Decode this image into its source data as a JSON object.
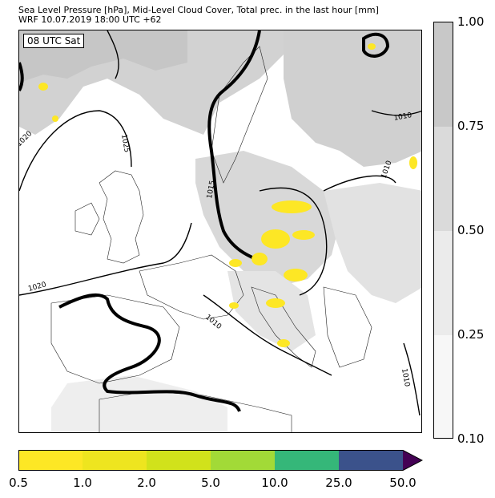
{
  "header": {
    "line1": "Sea Level Pressure [hPa], Mid-Level Cloud Cover, Total prec. in the last hour [mm]",
    "line2": "WRF 10.07.2019 18:00 UTC +62"
  },
  "map": {
    "time_label": "08 UTC Sat",
    "isobar_labels": [
      "1020",
      "1025",
      "1015",
      "1010",
      "1020",
      "1010",
      "1010",
      "1010"
    ]
  },
  "cloud_colorbar": {
    "ticks": [
      "1.00",
      "0.75",
      "0.50",
      "0.25",
      "0.10"
    ],
    "colors": [
      "#c8c8c8",
      "#dadada",
      "#ebebeb",
      "#f7f7f7"
    ]
  },
  "precip_colorbar": {
    "ticks": [
      "0.5",
      "1.0",
      "2.0",
      "5.0",
      "10.0",
      "25.0",
      "50.0"
    ],
    "colors": [
      "#fde725",
      "#eee51f",
      "#d1e21b",
      "#a2da37",
      "#35b779",
      "#3b528b",
      "#440154"
    ]
  },
  "legend": {
    "precip_color": "#fde725",
    "cloud_color": "#c8c8c8",
    "isobar_color": "#000000"
  }
}
